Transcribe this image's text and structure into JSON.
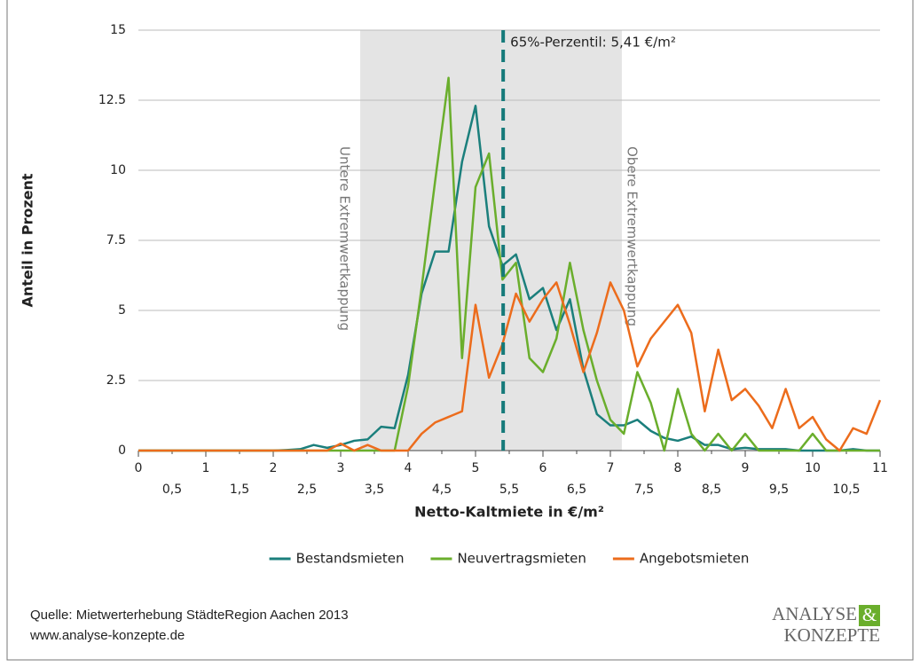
{
  "chart_data": {
    "type": "line",
    "xlabel": "Netto-Kaltmiete in €/m²",
    "ylabel": "Anteil in Prozent",
    "x": [
      0,
      0.2,
      0.4,
      0.6,
      0.8,
      1,
      1.2,
      1.4,
      1.6,
      1.8,
      2,
      2.2,
      2.4,
      2.6,
      2.8,
      3,
      3.2,
      3.4,
      3.6,
      3.8,
      4,
      4.2,
      4.4,
      4.6,
      4.8,
      5,
      5.2,
      5.4,
      5.6,
      5.8,
      6,
      6.2,
      6.4,
      6.6,
      6.8,
      7,
      7.2,
      7.4,
      7.6,
      7.8,
      8,
      8.2,
      8.4,
      8.6,
      8.8,
      9,
      9.2,
      9.4,
      9.6,
      9.8,
      10,
      10.2,
      10.4,
      10.6,
      10.8,
      11
    ],
    "series": [
      {
        "name": "Bestandsmieten",
        "color": "#1b7f7c",
        "values": [
          0,
          0,
          0,
          0,
          0,
          0,
          0,
          0,
          0,
          0,
          0,
          0.02,
          0.05,
          0.2,
          0.1,
          0.2,
          0.35,
          0.4,
          0.85,
          0.8,
          2.7,
          5.6,
          7.1,
          7.1,
          10.3,
          12.3,
          8.0,
          6.6,
          7.0,
          5.4,
          5.8,
          4.3,
          5.4,
          2.9,
          1.3,
          0.9,
          0.9,
          1.1,
          0.7,
          0.45,
          0.35,
          0.5,
          0.2,
          0.2,
          0.05,
          0.1,
          0.05,
          0.05,
          0.05,
          0,
          0,
          0,
          0,
          0.05,
          0,
          0
        ]
      },
      {
        "name": "Neuvertragsmieten",
        "color": "#6aae2c",
        "values": [
          0,
          0,
          0,
          0,
          0,
          0,
          0,
          0,
          0,
          0,
          0,
          0,
          0,
          0,
          0,
          0,
          0,
          0,
          0,
          0,
          2.3,
          5.8,
          9.6,
          13.3,
          3.3,
          9.4,
          10.6,
          6.1,
          6.7,
          3.3,
          2.8,
          4.0,
          6.7,
          4.3,
          2.5,
          1.1,
          0.6,
          2.8,
          1.7,
          0,
          2.2,
          0.6,
          0,
          0.6,
          0,
          0.6,
          0,
          0,
          0,
          0,
          0.6,
          0,
          0,
          0,
          0,
          0
        ]
      },
      {
        "name": "Angebotsmieten",
        "color": "#ec6c1c",
        "values": [
          0,
          0,
          0,
          0,
          0,
          0,
          0,
          0,
          0,
          0,
          0,
          0,
          0,
          0,
          0,
          0.25,
          0,
          0.2,
          0,
          0,
          0,
          0.6,
          1.0,
          1.2,
          1.4,
          5.2,
          2.6,
          3.8,
          5.6,
          4.6,
          5.4,
          6.0,
          4.5,
          2.8,
          4.2,
          6.0,
          5.0,
          3.0,
          4.0,
          4.6,
          5.2,
          4.2,
          1.4,
          3.6,
          1.8,
          2.2,
          1.6,
          0.8,
          2.2,
          0.8,
          1.2,
          0.4,
          0,
          0.8,
          0.6,
          1.8
        ]
      }
    ],
    "xlim": [
      0,
      11
    ],
    "ylim": [
      0,
      15
    ],
    "xticks": [
      0,
      1,
      2,
      3,
      4,
      5,
      6,
      7,
      8,
      9,
      10,
      11,
      {
        "value": 0.5,
        "label": "0,5"
      },
      {
        "value": 1.5,
        "label": "1,5"
      },
      {
        "value": 2.5,
        "label": "2,5"
      },
      {
        "value": 3.5,
        "label": "3,5"
      },
      {
        "value": 4.5,
        "label": "4,5"
      },
      {
        "value": 5.5,
        "label": "5,5"
      },
      {
        "value": 6.5,
        "label": "6,5"
      },
      {
        "value": 7.5,
        "label": "7,5"
      },
      {
        "value": 8.5,
        "label": "8,5"
      },
      {
        "value": 9.5,
        "label": "9,5"
      },
      {
        "value": 10.5,
        "label": "10,5"
      }
    ],
    "yticks": [
      0,
      2.5,
      5,
      7.5,
      10,
      12.5,
      15
    ],
    "grid": true,
    "shaded_range": [
      3.29,
      7.17
    ],
    "shade_labels": [
      "Untere Extremwertkappung",
      "Obere Extremwertkappung"
    ],
    "percentile": {
      "value": 5.41,
      "label": "65%-Perzentil: 5,41 €/m²"
    },
    "legend": "bottom"
  },
  "footer": {
    "source": "Quelle: Mietwerterhebung StädteRegion Aachen 2013",
    "url": "www.analyse-konzepte.de",
    "logo_top": "ANALYSE",
    "logo_amp": "&",
    "logo_bottom": "KONZEPTE"
  }
}
